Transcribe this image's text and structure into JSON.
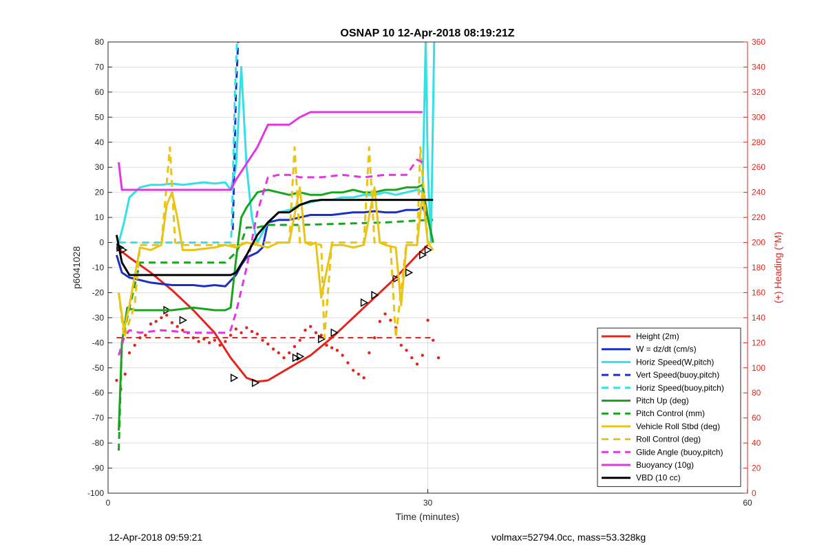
{
  "chart_data": {
    "type": "line",
    "title": "OSNAP 10 12-Apr-2018 08:19:21Z",
    "xlabel": "Time (minutes)",
    "ylabel": "p6041028",
    "y2label": "(+) Heading (°M)",
    "xlim": [
      0,
      60
    ],
    "ylim": [
      -100,
      80
    ],
    "y2lim": [
      0,
      360
    ],
    "xticks": [
      "0",
      "30",
      "60"
    ],
    "yticks": [
      "80",
      "70",
      "60",
      "50",
      "40",
      "30",
      "20",
      "10",
      "0",
      "-10",
      "-20",
      "-30",
      "-40",
      "-50",
      "-60",
      "-70",
      "-80",
      "-90",
      "-100"
    ],
    "y2ticks": [
      "360",
      "340",
      "320",
      "300",
      "280",
      "260",
      "240",
      "220",
      "200",
      "180",
      "160",
      "140",
      "120",
      "100",
      "80",
      "60",
      "40",
      "20",
      "0"
    ],
    "grid": true,
    "legend_position": "lower-right",
    "series": [
      {
        "name": "Height (2m)",
        "color": "#e3241b",
        "style": "solid",
        "x": [
          0.8,
          2,
          4,
          6,
          8,
          10,
          11.5,
          13,
          14,
          15,
          17,
          19,
          21,
          23,
          25,
          27,
          29,
          30
        ],
        "y": [
          -2,
          -6,
          -12,
          -19,
          -27,
          -36,
          -46,
          -54,
          -55.5,
          -55,
          -50,
          -45,
          -38,
          -30,
          -22,
          -14,
          -5,
          -1
        ],
        "markers": [
          [
            1.1,
            -2
          ],
          [
            1.4,
            -3
          ],
          [
            5.5,
            -27
          ],
          [
            7,
            -31
          ],
          [
            11.8,
            -54
          ],
          [
            13.8,
            -56
          ],
          [
            17.6,
            -46
          ],
          [
            18,
            -45.5
          ],
          [
            20,
            -38.5
          ],
          [
            21.2,
            -36
          ],
          [
            24,
            -24
          ],
          [
            25,
            -21
          ],
          [
            27,
            -14.5
          ],
          [
            28.2,
            -12
          ],
          [
            29.5,
            -5
          ],
          [
            30,
            -3
          ]
        ]
      },
      {
        "name": "W = dz/dt (cm/s)",
        "color": "#1a2fc4",
        "style": "solid",
        "x": [
          0.8,
          1.3,
          2,
          3,
          4,
          5,
          6,
          7,
          8,
          9,
          10,
          11,
          12,
          12.5,
          13,
          14,
          14.5,
          15,
          16,
          17,
          18,
          19,
          20,
          21,
          22,
          23,
          24,
          25,
          26,
          27,
          28,
          29,
          29.5,
          30,
          30.5
        ],
        "y": [
          -5,
          -12,
          -14,
          -15,
          -16,
          -16.5,
          -17,
          -17,
          -17,
          -17.5,
          -17,
          -17.5,
          -13,
          -9,
          -6,
          -4,
          -2,
          8,
          9,
          9,
          10,
          11,
          11,
          11,
          11.5,
          12,
          12,
          12.5,
          12,
          12,
          13,
          13,
          14,
          10,
          0
        ]
      },
      {
        "name": "Horiz Speed(W,pitch)",
        "color": "#33e0e6",
        "style": "solid",
        "x": [
          1,
          1.5,
          2,
          3,
          4,
          5,
          6,
          7,
          8,
          9,
          10,
          11,
          11.5,
          12,
          12.5,
          13,
          13.5,
          14,
          15,
          16,
          17,
          18,
          19,
          20,
          21,
          22,
          23,
          24,
          25,
          26,
          27,
          28,
          29,
          29.5,
          29.8,
          30,
          30.3,
          30.6
        ],
        "y": [
          0,
          8,
          18,
          22,
          23,
          23,
          23.5,
          23,
          23.5,
          24,
          23.5,
          24,
          21,
          30,
          70,
          30,
          10,
          0,
          8,
          12,
          13,
          15,
          16,
          17,
          17,
          18,
          18,
          19,
          19,
          20,
          19,
          20,
          21,
          20,
          80,
          30,
          0,
          80
        ]
      },
      {
        "name": "Vert Speed(buoy,pitch)",
        "color": "#1a2fc4",
        "style": "dashed",
        "x": [
          11.7,
          12,
          12.2
        ],
        "y": [
          5,
          60,
          80
        ]
      },
      {
        "name": "Horiz Speed(buoy,pitch)",
        "color": "#33e0e6",
        "style": "dashed",
        "x": [
          1,
          5,
          10,
          11.5,
          11.6,
          11.9,
          12.1
        ],
        "y": [
          0,
          0,
          0,
          0,
          5,
          60,
          80
        ]
      },
      {
        "name": "Pitch Up (deg)",
        "color": "#17a51d",
        "style": "solid",
        "x": [
          1,
          1.3,
          1.8,
          2.5,
          4,
          6,
          8,
          10,
          11,
          11.5,
          12,
          12.5,
          13,
          14,
          15,
          16,
          17,
          18,
          19,
          20,
          21,
          22,
          23,
          24,
          25,
          26,
          27,
          28,
          29,
          29.5,
          30,
          30.5
        ],
        "y": [
          -75,
          -40,
          -26,
          -27,
          -27,
          -27,
          -26,
          -27,
          -27,
          -26,
          -7,
          10,
          14,
          20,
          21,
          20,
          19,
          20,
          19,
          19,
          20,
          20,
          21,
          20,
          20,
          21,
          21,
          22,
          22,
          23,
          10,
          0
        ]
      },
      {
        "name": "Pitch Control (mm)",
        "color": "#17a51d",
        "style": "dashed",
        "x": [
          1,
          1.3,
          1.8,
          3,
          5,
          8,
          11,
          12,
          12.5,
          13,
          14,
          15,
          18,
          22,
          26,
          30,
          30.5
        ],
        "y": [
          -83,
          -40,
          -30,
          -8,
          -8,
          -8,
          -8,
          -4,
          0,
          6,
          6,
          7,
          7,
          7.5,
          8,
          9,
          9
        ]
      },
      {
        "name": "Vehicle Roll Stbd (deg)",
        "color": "#e8c416",
        "style": "solid",
        "x": [
          1,
          1.5,
          2,
          3,
          4,
          5,
          5.5,
          6,
          6.5,
          7,
          8,
          10,
          11,
          12,
          12.5,
          13,
          14,
          15,
          16,
          17,
          18,
          18.5,
          19,
          19.5,
          20,
          21,
          22,
          23,
          24,
          25,
          25.5,
          26,
          27,
          27.5,
          28,
          29,
          29.5,
          30,
          30.5
        ],
        "y": [
          -20,
          -35,
          -25,
          -2,
          -3,
          -1,
          15,
          20,
          10,
          -3,
          -3,
          -2,
          -1,
          -2,
          -1,
          0,
          -1,
          -2,
          0,
          0,
          22,
          0,
          -1,
          0,
          -22,
          -1,
          -1,
          -2,
          -1,
          22,
          0,
          -1,
          -2,
          -25,
          -1,
          -1,
          20,
          0,
          -3
        ]
      },
      {
        "name": "Roll Control (deg)",
        "color": "#e8c416",
        "style": "dashed",
        "x": [
          1,
          1.5,
          2.5,
          3,
          5,
          5.8,
          6.3,
          7,
          10,
          12,
          13,
          15,
          17,
          17.5,
          18,
          19,
          20,
          20.3,
          21,
          24,
          24.5,
          25,
          26,
          26.5,
          27,
          28,
          29,
          29.3,
          30,
          30.5
        ],
        "y": [
          -20,
          -38,
          -25,
          -1,
          -1,
          38,
          0,
          -1,
          -1,
          -1,
          0,
          0,
          0,
          38,
          0,
          0,
          -1,
          -38,
          0,
          0,
          38,
          0,
          0,
          -1,
          -38,
          0,
          0,
          38,
          0,
          0
        ]
      },
      {
        "name": "Glide Angle (buoy,pitch)",
        "color": "#e236e2",
        "style": "dashed",
        "x": [
          1,
          1.5,
          2,
          3,
          5,
          8,
          11,
          11.5,
          12,
          13,
          14,
          15,
          16,
          17,
          18,
          20,
          22,
          24,
          26,
          28,
          29,
          29.5
        ],
        "y": [
          -45,
          -38,
          -35,
          -36,
          -35,
          -36,
          -36,
          -35,
          -28,
          -10,
          12,
          26,
          27,
          27,
          26,
          26,
          27,
          26,
          27,
          27,
          33,
          32
        ]
      },
      {
        "name": "Buoyancy (10g)",
        "color": "#e236e2",
        "style": "solid",
        "x": [
          1,
          1.3,
          2,
          5,
          8,
          11.5,
          12,
          14,
          15,
          17,
          18,
          19,
          21,
          25,
          29,
          29.5
        ],
        "y": [
          32,
          21,
          21,
          21,
          21,
          21,
          25,
          38,
          47,
          47,
          50,
          52,
          52,
          52,
          52,
          52
        ]
      },
      {
        "name": "VBD (10 cc)",
        "color": "#000000",
        "style": "solid",
        "x": [
          0.8,
          1.3,
          2,
          4,
          8,
          11.5,
          12,
          13,
          14,
          15,
          16,
          17,
          18,
          19,
          20,
          25,
          30,
          30.5
        ],
        "y": [
          3,
          -8,
          -13,
          -13,
          -13,
          -13,
          -12,
          -5,
          3,
          8,
          12,
          12,
          15,
          16.5,
          17,
          17,
          17,
          17
        ]
      }
    ],
    "heading": {
      "color": "#e3241b",
      "dashed_level": 124,
      "dashed_x": [
        0.8,
        30.5
      ],
      "points": [
        [
          0.8,
          90
        ],
        [
          1.2,
          83
        ],
        [
          1.6,
          95
        ],
        [
          2,
          112
        ],
        [
          2.5,
          118
        ],
        [
          3,
          124
        ],
        [
          3.5,
          126
        ],
        [
          4,
          135
        ],
        [
          4.5,
          137
        ],
        [
          5,
          140
        ],
        [
          5.5,
          142
        ],
        [
          6,
          136
        ],
        [
          6.5,
          133
        ],
        [
          7,
          130
        ],
        [
          7.5,
          128
        ],
        [
          8,
          124
        ],
        [
          8.5,
          121
        ],
        [
          9,
          123
        ],
        [
          9.5,
          120
        ],
        [
          10,
          122
        ],
        [
          10.5,
          118
        ],
        [
          11,
          121
        ],
        [
          11.5,
          126
        ],
        [
          12,
          131
        ],
        [
          12.5,
          128
        ],
        [
          13,
          132
        ],
        [
          13.5,
          129
        ],
        [
          14,
          127
        ],
        [
          14.5,
          122
        ],
        [
          15,
          119
        ],
        [
          15.5,
          115
        ],
        [
          16,
          112
        ],
        [
          16.5,
          108
        ],
        [
          17,
          112
        ],
        [
          17.5,
          117
        ],
        [
          18,
          122
        ],
        [
          18.5,
          130
        ],
        [
          19,
          133
        ],
        [
          19.5,
          128
        ],
        [
          20,
          126
        ],
        [
          20.5,
          118
        ],
        [
          21,
          116
        ],
        [
          21.5,
          114
        ],
        [
          22,
          110
        ],
        [
          22.5,
          104
        ],
        [
          23,
          98
        ],
        [
          23.5,
          95
        ],
        [
          24,
          92
        ],
        [
          24.5,
          112
        ],
        [
          25,
          124
        ],
        [
          25.5,
          137
        ],
        [
          26,
          143
        ],
        [
          26.5,
          138
        ],
        [
          27,
          132
        ],
        [
          27.5,
          118
        ],
        [
          28,
          114
        ],
        [
          28.5,
          108
        ],
        [
          29,
          103
        ],
        [
          29.5,
          110
        ],
        [
          30,
          138
        ],
        [
          30.5,
          122
        ],
        [
          31,
          108
        ]
      ]
    },
    "legend_entries": [
      {
        "label": "Height (2m)",
        "color": "#e3241b",
        "style": "solid"
      },
      {
        "label": "W = dz/dt (cm/s)",
        "color": "#1a2fc4",
        "style": "solid"
      },
      {
        "label": "Horiz Speed(W,pitch)",
        "color": "#33e0e6",
        "style": "solid"
      },
      {
        "label": "Vert Speed(buoy,pitch)",
        "color": "#1a2fc4",
        "style": "dashed"
      },
      {
        "label": "Horiz Speed(buoy,pitch)",
        "color": "#33e0e6",
        "style": "dashed"
      },
      {
        "label": "Pitch Up (deg)",
        "color": "#17a51d",
        "style": "solid"
      },
      {
        "label": "Pitch Control (mm)",
        "color": "#17a51d",
        "style": "dashed"
      },
      {
        "label": "Vehicle Roll Stbd (deg)",
        "color": "#e8c416",
        "style": "solid"
      },
      {
        "label": "Roll Control (deg)",
        "color": "#e8c416",
        "style": "dashed"
      },
      {
        "label": "Glide Angle (buoy,pitch)",
        "color": "#e236e2",
        "style": "dashed"
      },
      {
        "label": "Buoyancy (10g)",
        "color": "#e236e2",
        "style": "solid"
      },
      {
        "label": "VBD (10 cc)",
        "color": "#000000",
        "style": "solid"
      }
    ]
  },
  "footer": {
    "left": "12-Apr-2018 09:59:21",
    "right": "volmax=52794.0cc, mass=53.328kg"
  }
}
